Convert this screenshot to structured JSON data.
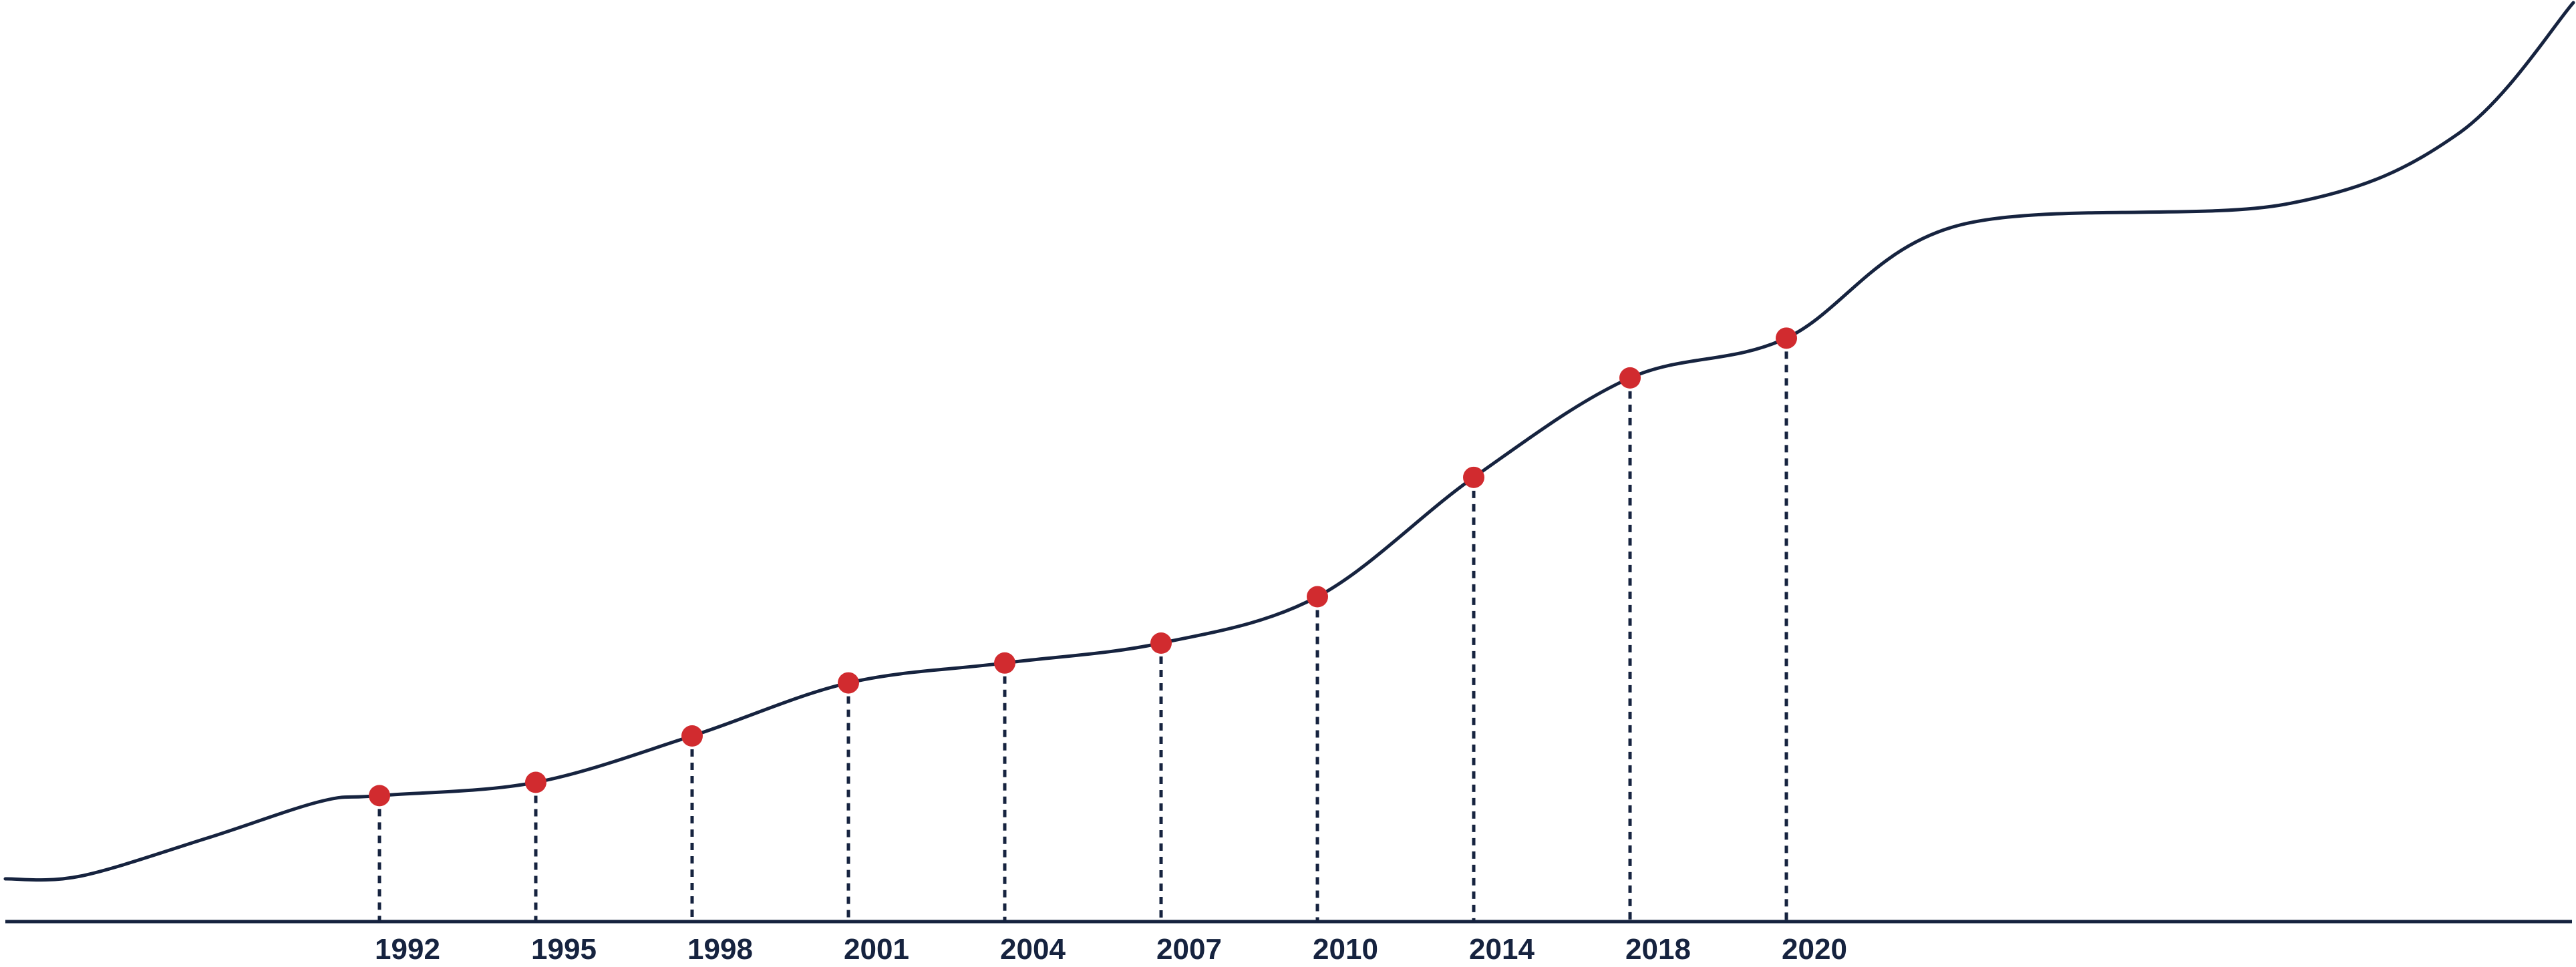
{
  "chart_data": {
    "type": "line",
    "title": "",
    "xlabel": "",
    "ylabel": "",
    "grid": false,
    "legend": "none",
    "categories": [
      "1992",
      "1995",
      "1998",
      "2001",
      "2004",
      "2007",
      "2010",
      "2014",
      "2018",
      "2020"
    ],
    "values": [
      19,
      21,
      28,
      36,
      39,
      42,
      49,
      67,
      82,
      88
    ],
    "ylim": [
      0,
      139
    ],
    "colors": {
      "line": "#16233f",
      "marker": "#d12b2f",
      "axis": "#16233f",
      "label": "#16233f",
      "guide": "#16233f"
    }
  }
}
